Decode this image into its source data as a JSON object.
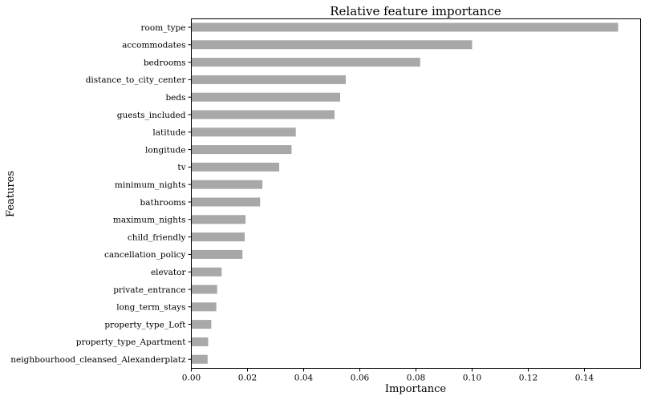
{
  "chart_data": {
    "type": "bar",
    "orientation": "horizontal",
    "title": "Relative feature importance",
    "xlabel": "Importance",
    "ylabel": "Features",
    "xlim": [
      0,
      0.16
    ],
    "xticks": [
      "0.00",
      "0.02",
      "0.04",
      "0.06",
      "0.08",
      "0.10",
      "0.12",
      "0.14"
    ],
    "xtick_values": [
      0,
      0.02,
      0.04,
      0.06,
      0.08,
      0.1,
      0.12,
      0.14
    ],
    "grid": false,
    "bar_color": "#a8a8a8",
    "categories": [
      "room_type",
      "accommodates",
      "bedrooms",
      "distance_to_city_center",
      "beds",
      "guests_included",
      "latitude",
      "longitude",
      "tv",
      "minimum_nights",
      "bathrooms",
      "maximum_nights",
      "child_friendly",
      "cancellation_policy",
      "elevator",
      "private_entrance",
      "long_term_stays",
      "property_type_Loft",
      "property_type_Apartment",
      "neighbourhood_cleansed_Alexanderplatz"
    ],
    "values": [
      0.152,
      0.1,
      0.0815,
      0.055,
      0.053,
      0.051,
      0.0372,
      0.0357,
      0.0313,
      0.0253,
      0.0245,
      0.0193,
      0.019,
      0.0182,
      0.0108,
      0.0092,
      0.0089,
      0.0071,
      0.006,
      0.0058
    ]
  }
}
